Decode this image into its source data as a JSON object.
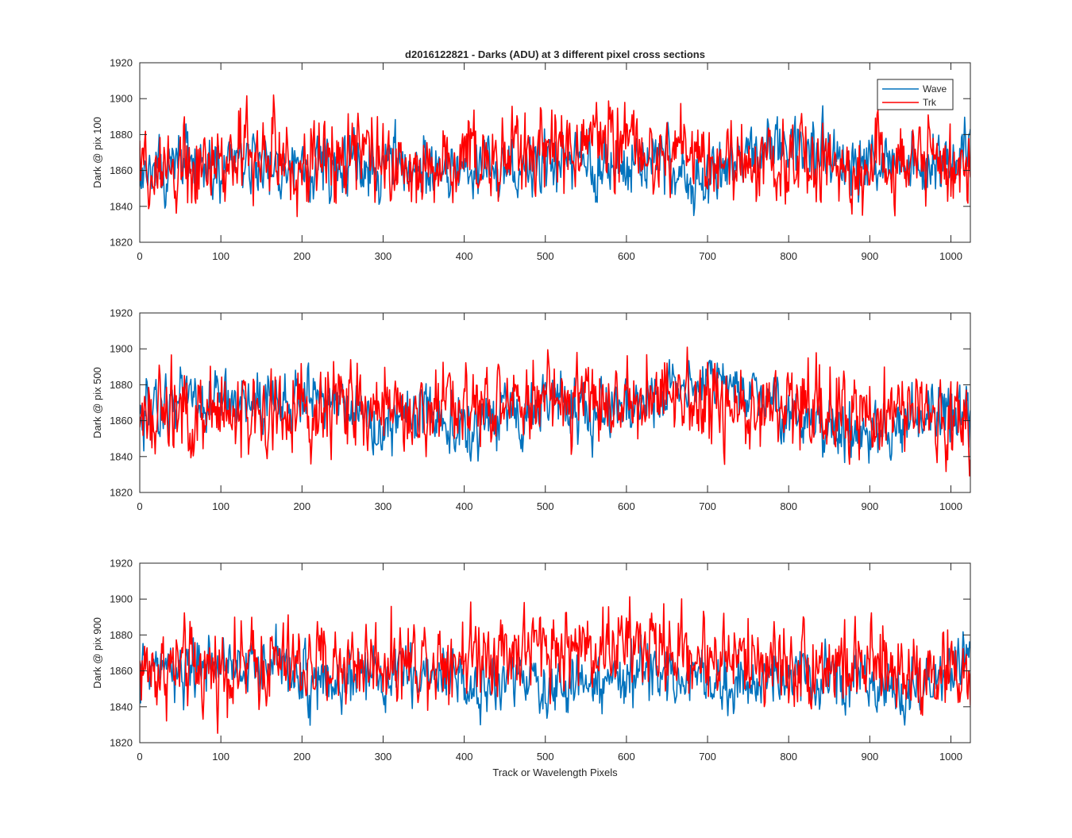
{
  "figure": {
    "title": "d2016122821 - Darks (ADU) at 3 different pixel cross sections",
    "xlabel": "Track or Wavelength Pixels"
  },
  "legend": {
    "placement": "top-right of first panel",
    "entries": [
      {
        "name": "Wave",
        "color": "#0072BD"
      },
      {
        "name": "Trk",
        "color": "#FF0000"
      }
    ]
  },
  "chart_data": [
    {
      "type": "line",
      "ylabel": "Dark @ pix 100",
      "xlim": [
        0,
        1024
      ],
      "ylim": [
        1820,
        1920
      ],
      "xticks": [
        0,
        100,
        200,
        300,
        400,
        500,
        600,
        700,
        800,
        900,
        1000
      ],
      "yticks": [
        1820,
        1840,
        1860,
        1880,
        1900,
        1920
      ],
      "grid": false,
      "series": [
        {
          "name": "Wave",
          "color": "#0072BD",
          "x_step": 25,
          "noise_amplitude": 8,
          "values": [
            1858,
            1862,
            1866,
            1862,
            1860,
            1870,
            1863,
            1862,
            1866,
            1861,
            1864,
            1862,
            1866,
            1864,
            1863,
            1856,
            1858,
            1862,
            1858,
            1859,
            1865,
            1867,
            1868,
            1859,
            1860,
            1868,
            1867,
            1856,
            1856,
            1859,
            1863,
            1873,
            1874,
            1870,
            1870,
            1861,
            1861,
            1864,
            1862,
            1859,
            1871,
            1872,
            1872,
            1865,
            1871,
            1875,
            1868
          ]
        },
        {
          "name": "Trk",
          "color": "#FF0000",
          "x_step": 25,
          "noise_amplitude": 11,
          "values": [
            1862,
            1866,
            1864,
            1863,
            1864,
            1866,
            1867,
            1866,
            1866,
            1866,
            1866,
            1865,
            1866,
            1864,
            1862,
            1864,
            1864,
            1866,
            1866,
            1870,
            1872,
            1872,
            1873,
            1872,
            1871,
            1872,
            1870,
            1868,
            1868,
            1866,
            1866,
            1864,
            1866,
            1866,
            1864,
            1864,
            1862,
            1864,
            1864,
            1862,
            1862,
            1860,
            1858,
            1858,
            1856,
            1856,
            1855
          ]
        }
      ]
    },
    {
      "type": "line",
      "ylabel": "Dark @ pix 500",
      "xlim": [
        0,
        1024
      ],
      "ylim": [
        1820,
        1920
      ],
      "xticks": [
        0,
        100,
        200,
        300,
        400,
        500,
        600,
        700,
        800,
        900,
        1000
      ],
      "yticks": [
        1820,
        1840,
        1860,
        1880,
        1900,
        1920
      ],
      "grid": false,
      "series": [
        {
          "name": "Wave",
          "color": "#0072BD",
          "x_step": 25,
          "noise_amplitude": 8,
          "values": [
            1866,
            1870,
            1875,
            1876,
            1871,
            1867,
            1872,
            1870,
            1875,
            1872,
            1868,
            1862,
            1858,
            1860,
            1866,
            1862,
            1856,
            1858,
            1864,
            1860,
            1868,
            1867,
            1865,
            1864,
            1862,
            1872,
            1876,
            1882,
            1880,
            1878,
            1874,
            1870,
            1862,
            1860,
            1856,
            1854,
            1852,
            1856,
            1860,
            1864,
            1860,
            1862,
            1870,
            1874,
            1868,
            1866,
            1868
          ]
        },
        {
          "name": "Trk",
          "color": "#FF0000",
          "x_step": 25,
          "noise_amplitude": 11,
          "values": [
            1858,
            1860,
            1862,
            1864,
            1862,
            1864,
            1862,
            1864,
            1866,
            1864,
            1866,
            1864,
            1866,
            1868,
            1868,
            1870,
            1870,
            1868,
            1870,
            1872,
            1874,
            1874,
            1876,
            1872,
            1874,
            1874,
            1872,
            1872,
            1870,
            1872,
            1868,
            1868,
            1868,
            1866,
            1866,
            1864,
            1864,
            1862,
            1862,
            1860,
            1862,
            1860,
            1860,
            1858,
            1858,
            1856,
            1855
          ]
        }
      ]
    },
    {
      "type": "line",
      "ylabel": "Dark @ pix 900",
      "xlim": [
        0,
        1024
      ],
      "ylim": [
        1820,
        1920
      ],
      "xticks": [
        0,
        100,
        200,
        300,
        400,
        500,
        600,
        700,
        800,
        900,
        1000
      ],
      "yticks": [
        1820,
        1840,
        1860,
        1880,
        1900,
        1920
      ],
      "grid": false,
      "series": [
        {
          "name": "Wave",
          "color": "#0072BD",
          "x_step": 25,
          "noise_amplitude": 8,
          "values": [
            1858,
            1860,
            1856,
            1858,
            1864,
            1864,
            1864,
            1862,
            1856,
            1856,
            1858,
            1860,
            1857,
            1858,
            1855,
            1856,
            1856,
            1855,
            1856,
            1858,
            1852,
            1850,
            1854,
            1854,
            1856,
            1858,
            1856,
            1854,
            1854,
            1852,
            1854,
            1856,
            1854,
            1856,
            1854,
            1852,
            1852,
            1848,
            1848,
            1852,
            1856,
            1872,
            1872,
            1864,
            1856,
            1850,
            1846
          ]
        },
        {
          "name": "Trk",
          "color": "#FF0000",
          "x_step": 25,
          "noise_amplitude": 11,
          "values": [
            1862,
            1860,
            1862,
            1860,
            1862,
            1862,
            1864,
            1864,
            1862,
            1864,
            1864,
            1866,
            1866,
            1866,
            1868,
            1868,
            1870,
            1872,
            1872,
            1872,
            1874,
            1872,
            1874,
            1874,
            1874,
            1874,
            1872,
            1870,
            1868,
            1868,
            1866,
            1866,
            1864,
            1864,
            1864,
            1862,
            1862,
            1860,
            1862,
            1860,
            1860,
            1858,
            1858,
            1856,
            1856,
            1852,
            1850
          ]
        }
      ]
    }
  ]
}
